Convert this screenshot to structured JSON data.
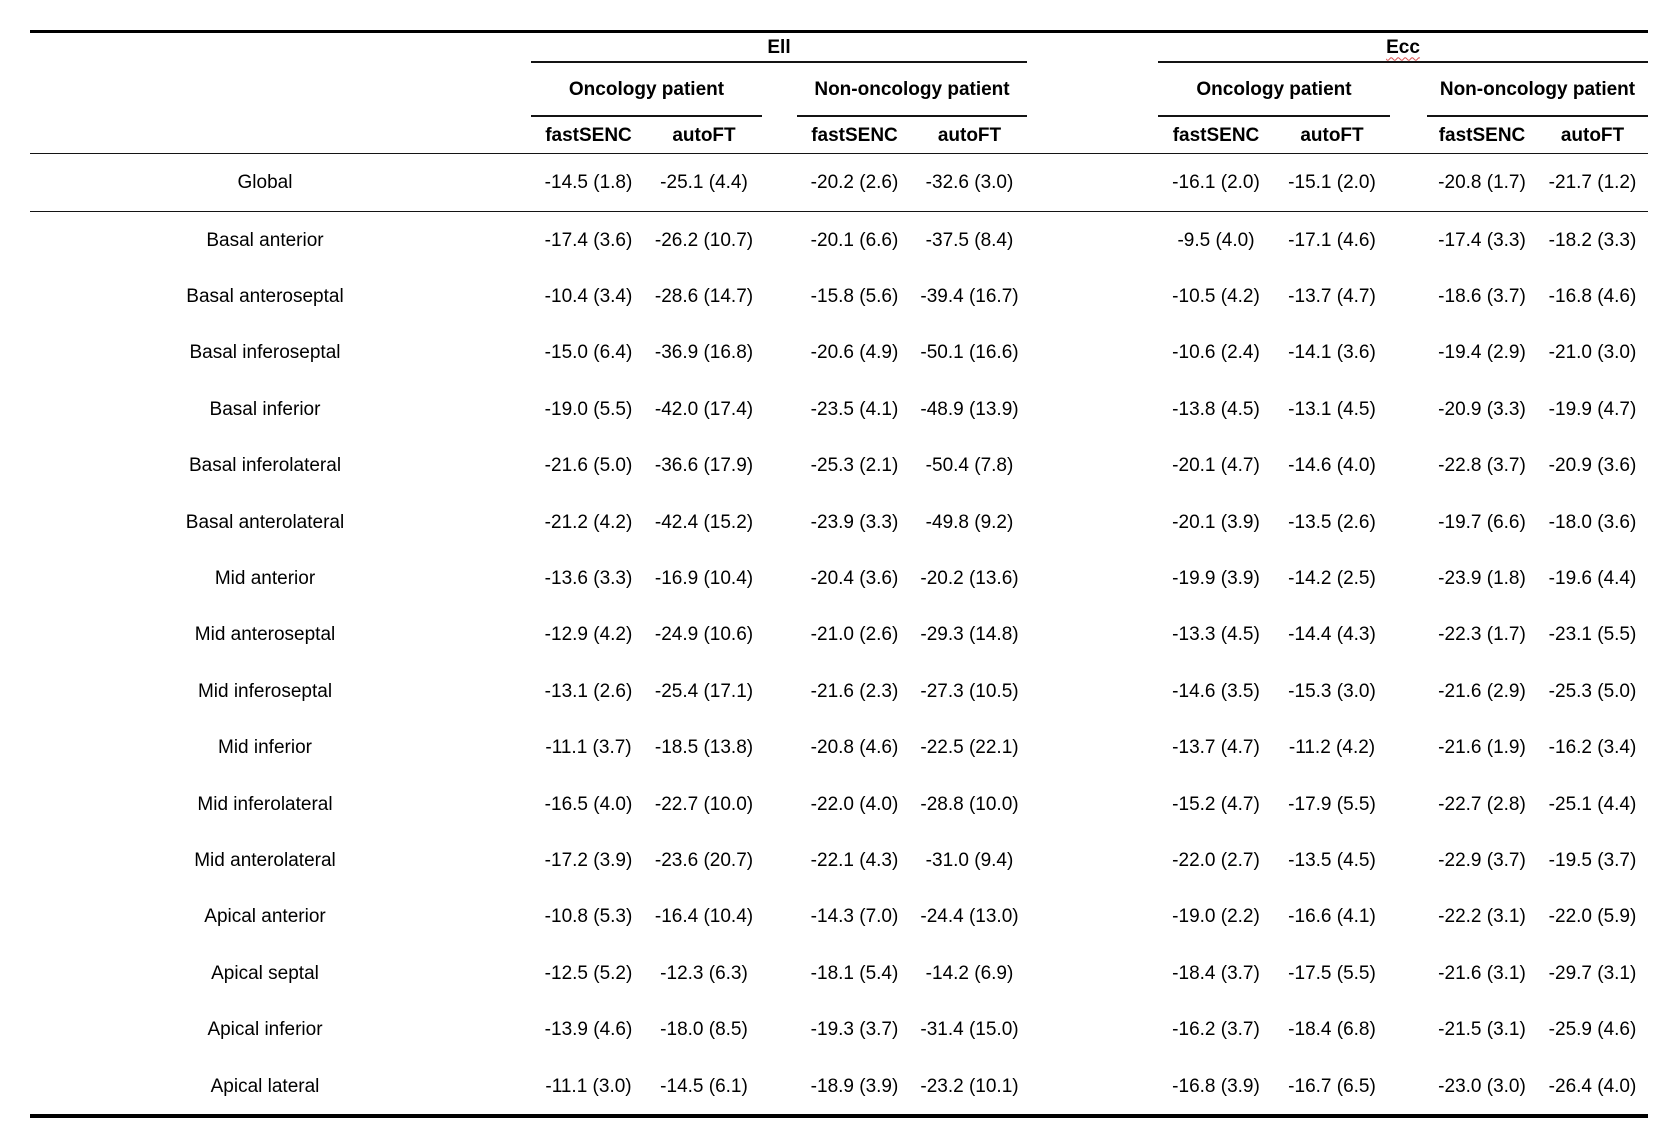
{
  "page": {
    "background": "#ffffff"
  },
  "table": {
    "colors": {
      "rule": "#000000",
      "spellcheck_red": "#d84b4b"
    },
    "groups": [
      {
        "label": "Ell",
        "spellcheck_underline": false
      },
      {
        "label": "Ecc",
        "spellcheck_underline": true
      }
    ],
    "subgroups": [
      "Oncology patient",
      "Non-oncology patient",
      "Oncology patient",
      "Non-oncology patient"
    ],
    "methods": [
      "fastSENC",
      "autoFT",
      "fastSENC",
      "autoFT",
      "fastSENC",
      "autoFT",
      "fastSENC",
      "autoFT"
    ],
    "rows": [
      {
        "label": "Global",
        "values": [
          "-14.5 (1.8)",
          "-25.1 (4.4)",
          "-20.2 (2.6)",
          "-32.6 (3.0)",
          "-16.1 (2.0)",
          "-15.1 (2.0)",
          "-20.8 (1.7)",
          "-21.7 (1.2)"
        ]
      },
      {
        "label": "Basal anterior",
        "values": [
          "-17.4 (3.6)",
          "-26.2 (10.7)",
          "-20.1 (6.6)",
          "-37.5 (8.4)",
          "-9.5 (4.0)",
          "-17.1 (4.6)",
          "-17.4 (3.3)",
          "-18.2 (3.3)"
        ]
      },
      {
        "label": "Basal anteroseptal",
        "values": [
          "-10.4 (3.4)",
          "-28.6 (14.7)",
          "-15.8 (5.6)",
          "-39.4 (16.7)",
          "-10.5 (4.2)",
          "-13.7 (4.7)",
          "-18.6 (3.7)",
          "-16.8 (4.6)"
        ]
      },
      {
        "label": "Basal inferoseptal",
        "values": [
          "-15.0 (6.4)",
          "-36.9 (16.8)",
          "-20.6 (4.9)",
          "-50.1 (16.6)",
          "-10.6 (2.4)",
          "-14.1 (3.6)",
          "-19.4 (2.9)",
          "-21.0 (3.0)"
        ]
      },
      {
        "label": "Basal inferior",
        "values": [
          "-19.0 (5.5)",
          "-42.0 (17.4)",
          "-23.5 (4.1)",
          "-48.9 (13.9)",
          "-13.8 (4.5)",
          "-13.1 (4.5)",
          "-20.9 (3.3)",
          "-19.9 (4.7)"
        ]
      },
      {
        "label": "Basal inferolateral",
        "values": [
          "-21.6 (5.0)",
          "-36.6 (17.9)",
          "-25.3 (2.1)",
          "-50.4 (7.8)",
          "-20.1 (4.7)",
          "-14.6 (4.0)",
          "-22.8 (3.7)",
          "-20.9 (3.6)"
        ]
      },
      {
        "label": "Basal anterolateral",
        "values": [
          "-21.2 (4.2)",
          "-42.4 (15.2)",
          "-23.9 (3.3)",
          "-49.8 (9.2)",
          "-20.1 (3.9)",
          "-13.5 (2.6)",
          "-19.7 (6.6)",
          "-18.0 (3.6)"
        ]
      },
      {
        "label": "Mid anterior",
        "values": [
          "-13.6 (3.3)",
          "-16.9 (10.4)",
          "-20.4 (3.6)",
          "-20.2 (13.6)",
          "-19.9 (3.9)",
          "-14.2 (2.5)",
          "-23.9 (1.8)",
          "-19.6 (4.4)"
        ]
      },
      {
        "label": "Mid anteroseptal",
        "values": [
          "-12.9 (4.2)",
          "-24.9 (10.6)",
          "-21.0 (2.6)",
          "-29.3 (14.8)",
          "-13.3 (4.5)",
          "-14.4 (4.3)",
          "-22.3 (1.7)",
          "-23.1 (5.5)"
        ]
      },
      {
        "label": "Mid inferoseptal",
        "values": [
          "-13.1 (2.6)",
          "-25.4 (17.1)",
          "-21.6 (2.3)",
          "-27.3 (10.5)",
          "-14.6 (3.5)",
          "-15.3 (3.0)",
          "-21.6 (2.9)",
          "-25.3 (5.0)"
        ]
      },
      {
        "label": "Mid inferior",
        "values": [
          "-11.1 (3.7)",
          "-18.5 (13.8)",
          "-20.8 (4.6)",
          "-22.5 (22.1)",
          "-13.7 (4.7)",
          "-11.2 (4.2)",
          "-21.6 (1.9)",
          "-16.2 (3.4)"
        ]
      },
      {
        "label": "Mid inferolateral",
        "values": [
          "-16.5 (4.0)",
          "-22.7 (10.0)",
          "-22.0 (4.0)",
          "-28.8 (10.0)",
          "-15.2 (4.7)",
          "-17.9 (5.5)",
          "-22.7 (2.8)",
          "-25.1 (4.4)"
        ]
      },
      {
        "label": "Mid anterolateral",
        "values": [
          "-17.2 (3.9)",
          "-23.6 (20.7)",
          "-22.1 (4.3)",
          "-31.0 (9.4)",
          "-22.0 (2.7)",
          "-13.5 (4.5)",
          "-22.9 (3.7)",
          "-19.5 (3.7)"
        ]
      },
      {
        "label": "Apical anterior",
        "values": [
          "-10.8 (5.3)",
          "-16.4 (10.4)",
          "-14.3 (7.0)",
          "-24.4 (13.0)",
          "-19.0 (2.2)",
          "-16.6 (4.1)",
          "-22.2 (3.1)",
          "-22.0 (5.9)"
        ]
      },
      {
        "label": "Apical septal",
        "values": [
          "-12.5 (5.2)",
          "-12.3 (6.3)",
          "-18.1 (5.4)",
          "-14.2 (6.9)",
          "-18.4 (3.7)",
          "-17.5 (5.5)",
          "-21.6 (3.1)",
          "-29.7 (3.1)"
        ]
      },
      {
        "label": "Apical inferior",
        "values": [
          "-13.9 (4.6)",
          "-18.0 (8.5)",
          "-19.3 (3.7)",
          "-31.4 (15.0)",
          "-16.2 (3.7)",
          "-18.4 (6.8)",
          "-21.5 (3.1)",
          "-25.9 (4.6)"
        ]
      },
      {
        "label": "Apical lateral",
        "values": [
          "-11.1 (3.0)",
          "-14.5 (6.1)",
          "-18.9 (3.9)",
          "-23.2 (10.1)",
          "-16.8 (3.9)",
          "-16.7 (6.5)",
          "-23.0 (3.0)",
          "-26.4 (4.0)"
        ]
      }
    ]
  }
}
